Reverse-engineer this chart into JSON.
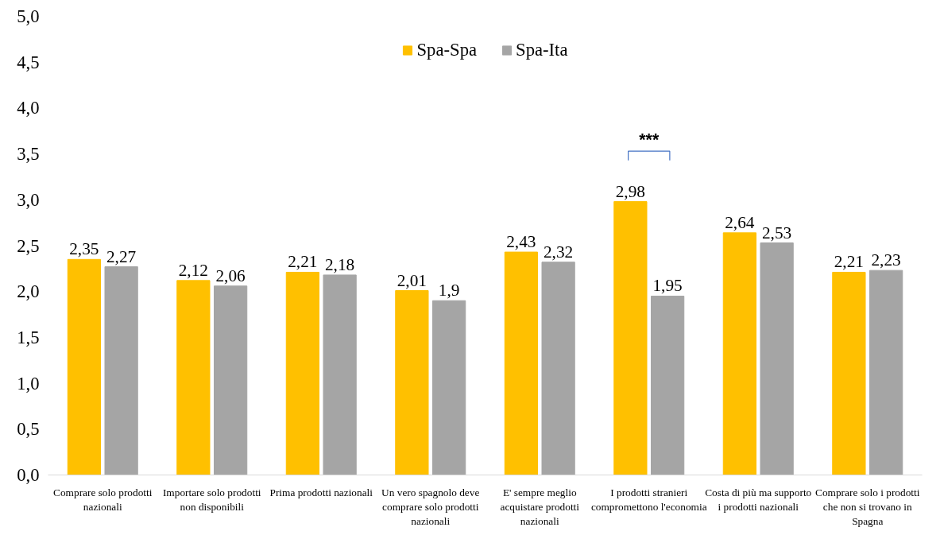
{
  "chart_data": {
    "type": "bar",
    "categories": [
      "Comprare solo prodotti nazionali",
      "Importare solo prodotti non disponibili",
      "Prima prodotti nazionali",
      "Un vero spagnolo deve comprare solo prodotti nazionali",
      "E' sempre meglio acquistare prodotti nazionali",
      "I prodotti stranieri compromettono l'economia",
      "Costa di più ma supporto i prodotti nazionali",
      "Comprare solo i prodotti  che non si trovano in Spagna"
    ],
    "series": [
      {
        "name": "Spa-Spa",
        "color": "#ffc000",
        "values": [
          2.35,
          2.12,
          2.21,
          2.01,
          2.43,
          2.98,
          2.64,
          2.21
        ],
        "value_labels": [
          "2,35",
          "2,12",
          "2,21",
          "2,01",
          "2,43",
          "2,98",
          "2,64",
          "2,21"
        ]
      },
      {
        "name": "Spa-Ita",
        "color": "#a5a5a5",
        "values": [
          2.27,
          2.06,
          2.18,
          1.9,
          2.32,
          1.95,
          2.53,
          2.23
        ],
        "value_labels": [
          "2,27",
          "2,06",
          "2,18",
          "1,9",
          "2,32",
          "1,95",
          "2,53",
          "2,23"
        ]
      }
    ],
    "ylim": [
      0,
      5
    ],
    "yticks": [
      {
        "value": 0,
        "label": "0,0"
      },
      {
        "value": 0.5,
        "label": "0,5"
      },
      {
        "value": 1,
        "label": "1,0"
      },
      {
        "value": 1.5,
        "label": "1,5"
      },
      {
        "value": 2,
        "label": "2,0"
      },
      {
        "value": 2.5,
        "label": "2,5"
      },
      {
        "value": 3,
        "label": "3,0"
      },
      {
        "value": 3.5,
        "label": "3,5"
      },
      {
        "value": 4,
        "label": "4,0"
      },
      {
        "value": 4.5,
        "label": "4,5"
      },
      {
        "value": 5,
        "label": "5,0"
      }
    ],
    "annotations": [
      "***"
    ],
    "grid": false,
    "legend": "top"
  }
}
